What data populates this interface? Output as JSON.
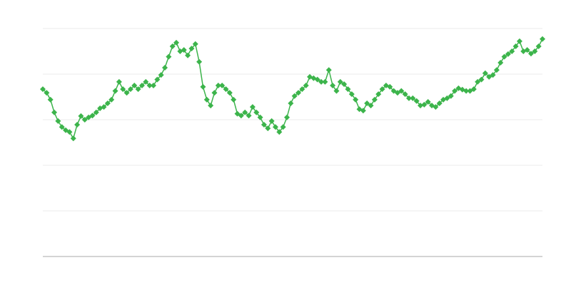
{
  "chart_data": {
    "type": "line",
    "color": "#3cb44b",
    "grid": true,
    "ylim": [
      0,
      5
    ],
    "yticks": [
      0,
      1,
      2,
      3,
      4,
      5
    ],
    "values": [
      3.67,
      3.59,
      3.44,
      3.16,
      2.97,
      2.84,
      2.77,
      2.73,
      2.59,
      2.89,
      3.08,
      3.0,
      3.05,
      3.09,
      3.16,
      3.25,
      3.28,
      3.36,
      3.44,
      3.63,
      3.83,
      3.67,
      3.59,
      3.67,
      3.75,
      3.67,
      3.75,
      3.83,
      3.75,
      3.75,
      3.88,
      3.98,
      4.14,
      4.38,
      4.61,
      4.69,
      4.5,
      4.53,
      4.41,
      4.56,
      4.66,
      4.27,
      3.72,
      3.44,
      3.31,
      3.59,
      3.75,
      3.75,
      3.67,
      3.59,
      3.44,
      3.13,
      3.09,
      3.16,
      3.09,
      3.28,
      3.16,
      3.05,
      2.89,
      2.81,
      2.97,
      2.84,
      2.73,
      2.84,
      3.05,
      3.36,
      3.52,
      3.59,
      3.67,
      3.75,
      3.94,
      3.91,
      3.88,
      3.83,
      3.83,
      4.09,
      3.75,
      3.63,
      3.83,
      3.78,
      3.67,
      3.56,
      3.44,
      3.23,
      3.2,
      3.36,
      3.31,
      3.44,
      3.56,
      3.67,
      3.75,
      3.72,
      3.63,
      3.59,
      3.63,
      3.56,
      3.47,
      3.47,
      3.41,
      3.31,
      3.33,
      3.39,
      3.31,
      3.28,
      3.36,
      3.44,
      3.47,
      3.52,
      3.63,
      3.69,
      3.66,
      3.63,
      3.63,
      3.67,
      3.83,
      3.88,
      4.02,
      3.94,
      3.98,
      4.09,
      4.25,
      4.38,
      4.44,
      4.5,
      4.61,
      4.72,
      4.5,
      4.53,
      4.45,
      4.5,
      4.61,
      4.77
    ]
  }
}
